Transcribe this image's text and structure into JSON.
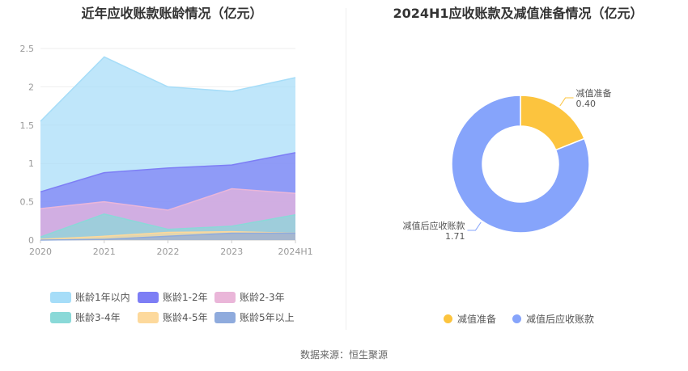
{
  "source": "数据来源：恒生聚源",
  "chart_data": [
    {
      "type": "area",
      "title": "近年应收账款账龄情况（亿元）",
      "x": [
        "2020",
        "2021",
        "2022",
        "2023",
        "2024H1"
      ],
      "yticks": [
        "0",
        "0.5",
        "1",
        "1.5",
        "2",
        "2.5"
      ],
      "ylim": [
        0,
        2.5
      ],
      "stacked": false,
      "grid": true,
      "legend_position": "bottom",
      "series": [
        {
          "name": "账龄1年以内",
          "color": "#a6ddf8",
          "values": [
            1.55,
            2.39,
            2.0,
            1.94,
            2.12
          ]
        },
        {
          "name": "账龄1-2年",
          "color": "#7d7ef5",
          "values": [
            0.63,
            0.88,
            0.94,
            0.98,
            1.14
          ]
        },
        {
          "name": "账龄2-3年",
          "color": "#eab6d9",
          "values": [
            0.41,
            0.5,
            0.39,
            0.67,
            0.61
          ]
        },
        {
          "name": "账龄3-4年",
          "color": "#8ad9d8",
          "values": [
            0.04,
            0.34,
            0.14,
            0.18,
            0.33
          ]
        },
        {
          "name": "账龄4-5年",
          "color": "#fdd99c",
          "values": [
            0.01,
            0.05,
            0.1,
            0.11,
            0.09
          ]
        },
        {
          "name": "账龄5年以上",
          "color": "#8fabdd",
          "values": [
            0.0,
            0.01,
            0.05,
            0.09,
            0.09
          ]
        }
      ]
    },
    {
      "type": "pie",
      "donut": true,
      "title": "2024H1应收账款及减值准备情况（亿元）",
      "legend_position": "bottom",
      "slices": [
        {
          "name": "减值准备",
          "value": 0.4,
          "label": "0.40",
          "color": "#fcc43e"
        },
        {
          "name": "减值后应收账款",
          "value": 1.71,
          "label": "1.71",
          "color": "#86a4fb"
        }
      ]
    }
  ]
}
